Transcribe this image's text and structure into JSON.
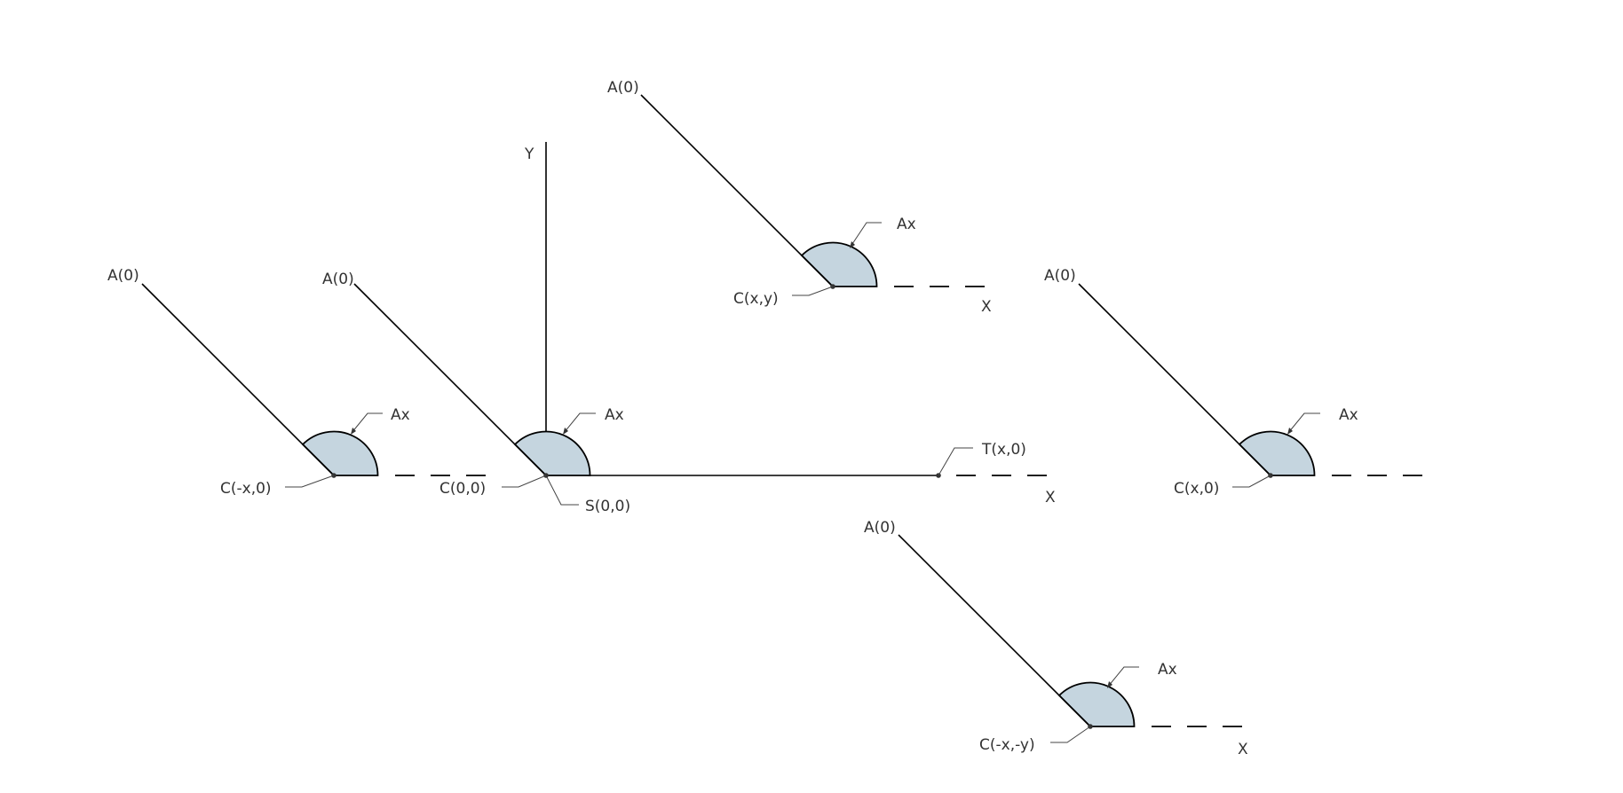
{
  "axes": {
    "y_label": "Y",
    "x_label": "X",
    "origin_label": "S(0,0)",
    "end_point_label": "T(x,0)"
  },
  "colors": {
    "angle_fill": "#c5d5df",
    "line": "#000000",
    "text": "#333333"
  },
  "figures": [
    {
      "id": "c-neg-x",
      "center_label": "C(-x,0)",
      "line_end_label": "A(0)",
      "angle_label": "Ax",
      "x_label": ""
    },
    {
      "id": "c-origin",
      "center_label": "C(0,0)",
      "line_end_label": "A(0)",
      "angle_label": "Ax",
      "x_label": ""
    },
    {
      "id": "c-x-y",
      "center_label": "C(x,y)",
      "line_end_label": "A(0)",
      "angle_label": "Ax",
      "x_label": "X"
    },
    {
      "id": "c-x",
      "center_label": "C(x,0)",
      "line_end_label": "A(0)",
      "angle_label": "Ax",
      "x_label": ""
    },
    {
      "id": "c-neg-x-neg-y",
      "center_label": "C(-x,-y)",
      "line_end_label": "A(0)",
      "angle_label": "Ax",
      "x_label": "X"
    }
  ]
}
